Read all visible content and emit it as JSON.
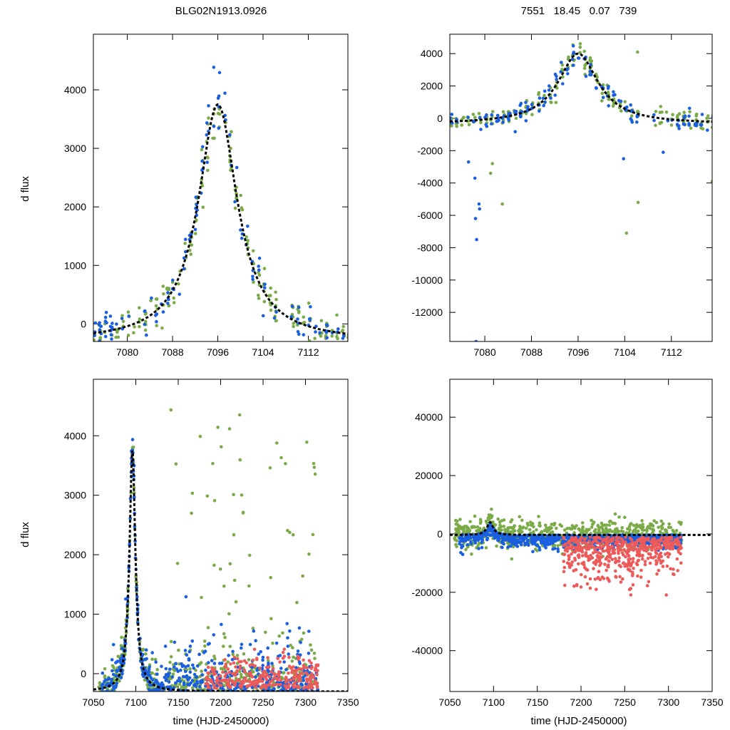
{
  "colors": {
    "green": "#7aab48",
    "blue": "#1a5fe0",
    "red": "#ec5a5a",
    "model": "#000000"
  },
  "chart_data": [
    {
      "id": "top-left",
      "type": "scatter",
      "title": "BLG02N1913.0926",
      "xlabel": "",
      "ylabel": "d flux",
      "xlim": [
        7074,
        7119
      ],
      "ylim": [
        -300,
        4950
      ],
      "xticks": [
        7080,
        7088,
        7096,
        7104,
        7112
      ],
      "yticks": [
        0,
        1000,
        2000,
        3000,
        4000
      ],
      "model": {
        "type": "pspl",
        "t0": 7096,
        "peak": 3750,
        "baseline": -300,
        "tE": 4.2
      },
      "series": [
        {
          "name": "green",
          "color": "green",
          "n": 220,
          "seed": 11,
          "noise": 280
        },
        {
          "name": "blue",
          "color": "blue",
          "n": 140,
          "seed": 23,
          "noise": 320
        }
      ],
      "legend": "none"
    },
    {
      "id": "top-right",
      "type": "scatter",
      "title": "7551   18.45   0.07   739",
      "xlabel": "",
      "ylabel": "",
      "xlim": [
        7074,
        7119
      ],
      "ylim": [
        -13800,
        5200
      ],
      "xticks": [
        7080,
        7088,
        7096,
        7104,
        7112
      ],
      "yticks": [
        4000,
        2000,
        0,
        -2000,
        -4000,
        -6000,
        -8000,
        -10000,
        -12000
      ],
      "model": {
        "type": "pspl",
        "t0": 7096,
        "peak": 4000,
        "baseline": -350,
        "tE": 4.2
      },
      "series": [
        {
          "name": "green",
          "color": "green",
          "n": 220,
          "seed": 31,
          "noise": 500
        },
        {
          "name": "blue",
          "color": "blue",
          "n": 150,
          "seed": 47,
          "noise": 600
        }
      ],
      "outliers": [
        [
          7078.5,
          -13800,
          "blue"
        ],
        [
          7078.6,
          -7500,
          "blue"
        ],
        [
          7078.4,
          -6200,
          "blue"
        ],
        [
          7079,
          -5300,
          "blue"
        ],
        [
          7079.1,
          -5600,
          "blue"
        ],
        [
          7078.3,
          -3700,
          "blue"
        ],
        [
          7077.2,
          -2700,
          "blue"
        ],
        [
          7081,
          -3400,
          "green"
        ],
        [
          7083,
          -5300,
          "green"
        ],
        [
          7081.3,
          -2800,
          "green"
        ],
        [
          7104.3,
          -7100,
          "green"
        ],
        [
          7106.3,
          -5200,
          "green"
        ],
        [
          7106.2,
          4100,
          "green"
        ],
        [
          7103.8,
          -2500,
          "blue"
        ],
        [
          7110.6,
          -2100,
          "blue"
        ],
        [
          7119,
          -3900,
          "green"
        ]
      ],
      "legend": "none"
    },
    {
      "id": "bottom-left",
      "type": "scatter",
      "title": "",
      "xlabel": "time (HJD-2450000)",
      "ylabel": "d flux",
      "xlim": [
        7050,
        7350
      ],
      "ylim": [
        -300,
        4950
      ],
      "xticks": [
        7050,
        7100,
        7150,
        7200,
        7250,
        7300,
        7350
      ],
      "yticks": [
        0,
        1000,
        2000,
        3000,
        4000
      ],
      "model": {
        "type": "pspl",
        "t0": 7096,
        "peak": 3750,
        "baseline": -300,
        "tE": 4.2
      },
      "series": [
        {
          "name": "green",
          "color": "green",
          "range": [
            7055,
            7315
          ],
          "n": 700,
          "seed": 53
        },
        {
          "name": "blue",
          "color": "blue",
          "range": [
            7060,
            7315
          ],
          "n": 650,
          "seed": 67
        },
        {
          "name": "red",
          "color": "red",
          "range": [
            7180,
            7315
          ],
          "n": 260,
          "seed": 79
        }
      ],
      "legend": "none"
    },
    {
      "id": "bottom-right",
      "type": "scatter",
      "title": "",
      "xlabel": "time (HJD-2450000)",
      "ylabel": "",
      "xlim": [
        7050,
        7350
      ],
      "ylim": [
        -54000,
        53000
      ],
      "xticks": [
        7050,
        7100,
        7150,
        7200,
        7250,
        7300,
        7350
      ],
      "yticks": [
        40000,
        20000,
        0,
        -20000,
        -40000
      ],
      "model": {
        "type": "pspl",
        "t0": 7096,
        "peak": 4000,
        "baseline": -350,
        "tE": 4.2
      },
      "series": [
        {
          "name": "green",
          "color": "green",
          "range": [
            7055,
            7315
          ],
          "n": 700,
          "seed": 83
        },
        {
          "name": "blue",
          "color": "blue",
          "range": [
            7060,
            7315
          ],
          "n": 700,
          "seed": 97
        },
        {
          "name": "red",
          "color": "red",
          "range": [
            7180,
            7315
          ],
          "n": 500,
          "seed": 101
        }
      ],
      "legend": "none"
    }
  ]
}
